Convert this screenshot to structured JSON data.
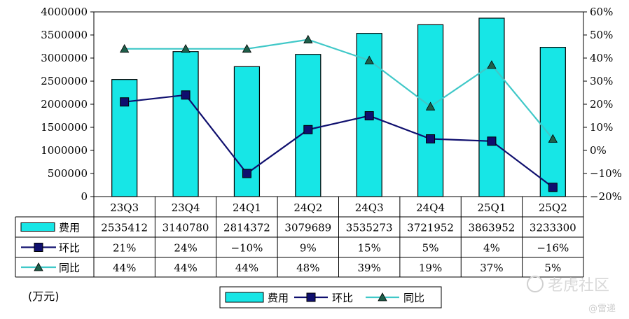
{
  "chart_data": {
    "type": "bar",
    "categories": [
      "23Q3",
      "23Q4",
      "24Q1",
      "24Q2",
      "24Q3",
      "24Q4",
      "25Q1",
      "25Q2"
    ],
    "series": [
      {
        "name": "费用",
        "type": "bar",
        "axis": "left",
        "values": [
          2535412,
          3140780,
          2814372,
          3079689,
          3535273,
          3721952,
          3863952,
          3233300
        ],
        "labels": [
          "2535412",
          "3140780",
          "2814372",
          "3079689",
          "3535273",
          "3721952",
          "3863952",
          "3233300"
        ],
        "color": "#17E6E6"
      },
      {
        "name": "环比",
        "type": "line",
        "axis": "right",
        "marker": "square",
        "values": [
          21,
          24,
          -10,
          9,
          15,
          5,
          4,
          -16
        ],
        "labels": [
          "21%",
          "24%",
          "−10%",
          "9%",
          "15%",
          "5%",
          "4%",
          "−16%"
        ],
        "color": "#0F0F6E"
      },
      {
        "name": "同比",
        "type": "line",
        "axis": "right",
        "marker": "triangle",
        "values": [
          44,
          44,
          44,
          48,
          39,
          19,
          37,
          5
        ],
        "labels": [
          "44%",
          "44%",
          "44%",
          "48%",
          "39%",
          "19%",
          "37%",
          "5%"
        ],
        "color": "#40C8C8"
      }
    ],
    "yleft": {
      "lim": [
        0,
        4000000
      ],
      "ticks": [
        "4000000",
        "3500000",
        "3000000",
        "2500000",
        "2000000",
        "1500000",
        "1000000",
        "500000",
        "0"
      ]
    },
    "yright": {
      "lim": [
        -20,
        60
      ],
      "ticks": [
        "60%",
        "50%",
        "40%",
        "30%",
        "20%",
        "10%",
        "0%",
        "−10%",
        "−20%"
      ]
    },
    "unit_label": "(万元)",
    "legend_position": "bottom",
    "data_table": true,
    "grid": false
  },
  "watermark": {
    "brand": "老虎社区",
    "credit": "@雷递"
  }
}
